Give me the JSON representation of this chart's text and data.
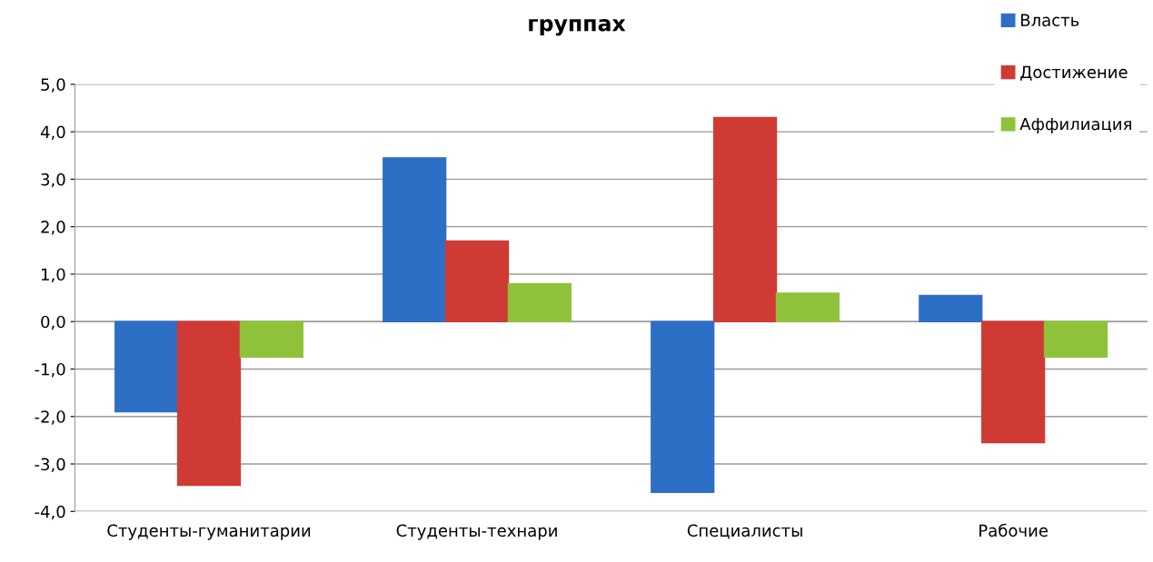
{
  "chart_data": {
    "type": "bar",
    "title": "группах",
    "categories": [
      "Студенты-гуманитарии",
      "Студенты-технари",
      "Специалисты",
      "Рабочие"
    ],
    "series": [
      {
        "name": "Власть",
        "color": "#2e6fc6",
        "values": [
          -1.9,
          3.45,
          -3.6,
          0.55
        ]
      },
      {
        "name": "Достижение",
        "color": "#d03a34",
        "values": [
          -3.45,
          1.7,
          4.3,
          -2.55
        ]
      },
      {
        "name": "Аффилиация",
        "color": "#8fc23a",
        "values": [
          -0.75,
          0.8,
          0.6,
          -0.75
        ]
      }
    ],
    "ylim": [
      -4,
      5
    ],
    "yticks": [
      {
        "value": -4,
        "label": "-4,0"
      },
      {
        "value": -3,
        "label": "-3,0"
      },
      {
        "value": -2,
        "label": "-2,0"
      },
      {
        "value": -1,
        "label": "-1,0"
      },
      {
        "value": 0,
        "label": "0,0"
      },
      {
        "value": 1,
        "label": "1,0"
      },
      {
        "value": 2,
        "label": "2,0"
      },
      {
        "value": 3,
        "label": "3,0"
      },
      {
        "value": 4,
        "label": "4,0"
      },
      {
        "value": 5,
        "label": "5,0"
      }
    ],
    "grid": "y",
    "legend": "top right"
  }
}
